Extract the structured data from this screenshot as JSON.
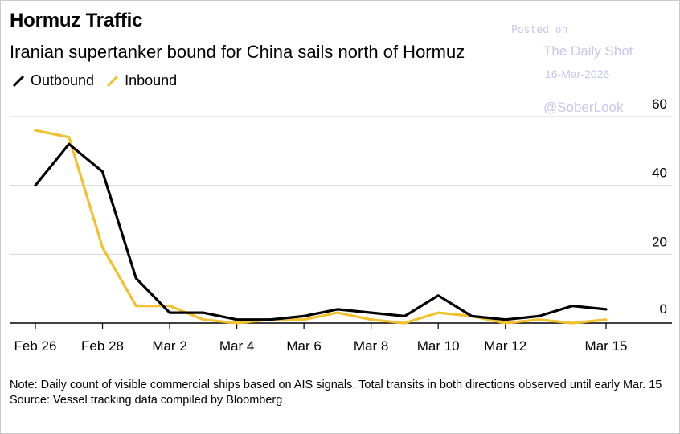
{
  "header": {
    "title": "Hormuz Traffic",
    "subtitle": "Iranian supertanker bound for China sails north of Hormuz"
  },
  "watermark": {
    "line1": "Posted on",
    "line2": "The Daily Shot",
    "line3": "16-Mar-2026",
    "line4": "@SoberLook",
    "color": "#c7c7ef"
  },
  "footer": {
    "note": "Note: Daily count of visible commercial ships based on AIS signals. Total transits in both directions observed until early Mar. 15",
    "source": "Source: Vessel tracking data compiled by Bloomberg"
  },
  "chart_data": {
    "type": "line",
    "title": "Hormuz Traffic",
    "subtitle": "Iranian supertanker bound for China sails north of Hormuz",
    "x": [
      "Feb 26",
      "Feb 27",
      "Feb 28",
      "Mar 1",
      "Mar 2",
      "Mar 3",
      "Mar 4",
      "Mar 5",
      "Mar 6",
      "Mar 7",
      "Mar 8",
      "Mar 9",
      "Mar 10",
      "Mar 11",
      "Mar 12",
      "Mar 13",
      "Mar 14",
      "Mar 15"
    ],
    "x_tick_labels": [
      "Feb 26",
      "Feb 28",
      "Mar 2",
      "Mar 4",
      "Mar 6",
      "Mar 8",
      "Mar 10",
      "Mar 12",
      "Mar 15"
    ],
    "series": [
      {
        "name": "Outbound",
        "color": "#000000",
        "values": [
          40,
          52,
          44,
          13,
          3,
          3,
          1,
          1,
          2,
          4,
          3,
          2,
          8,
          2,
          1,
          2,
          5,
          4
        ]
      },
      {
        "name": "Inbound",
        "color": "#f2c12e",
        "values": [
          56,
          54,
          22,
          5,
          5,
          1,
          0,
          1,
          1,
          3,
          1,
          0,
          3,
          2,
          0,
          1,
          0,
          1
        ]
      }
    ],
    "y_ticks": [
      0,
      20,
      40,
      60
    ],
    "ylim": [
      0,
      60
    ],
    "y_axis_side": "right",
    "grid": true,
    "legend": "top-left",
    "xlabel": "",
    "ylabel": ""
  }
}
